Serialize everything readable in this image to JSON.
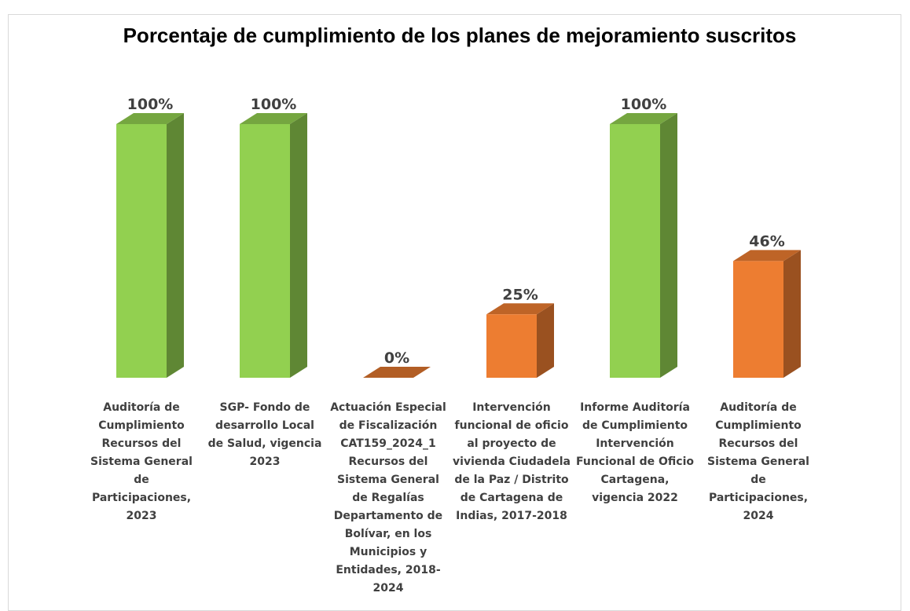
{
  "chart_data": {
    "type": "bar3d",
    "title": "Porcentaje de cumplimiento de los planes de mejoramiento suscritos",
    "categories": [
      "Auditoría de Cumplimiento Recursos del Sistema General de Participaciones, 2023",
      "SGP- Fondo de desarrollo Local de Salud, vigencia 2023",
      "Actuación Especial de Fiscalización CAT159_2024_1 Recursos del Sistema General de Regalías Departamento de Bolívar, en los Municipios y Entidades, 2018-2024",
      "Intervención funcional de oficio al proyecto de vivienda Ciudadela de la Paz / Distrito de Cartagena de Indias, 2017-2018",
      "Informe Auditoría de Cumplimiento Intervención Funcional de Oficio Cartagena, vigencia 2022",
      "Auditoría de Cumplimiento Recursos del Sistema General de Participaciones, 2024"
    ],
    "values": [
      100,
      100,
      0,
      25,
      100,
      46
    ],
    "value_labels": [
      "100%",
      "100%",
      "0%",
      "25%",
      "100%",
      "46%"
    ],
    "colors": [
      "#92d050",
      "#92d050",
      "#ed7d31",
      "#ed7d31",
      "#92d050",
      "#ed7d31"
    ]
  }
}
